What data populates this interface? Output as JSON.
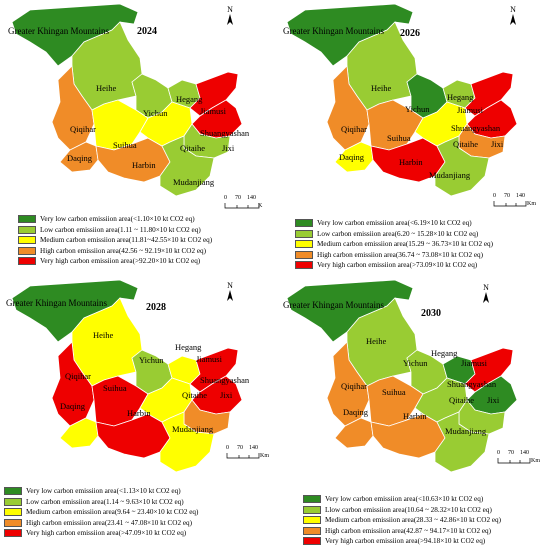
{
  "colors": {
    "very_low": "#2e8b22",
    "low": "#99cc33",
    "medium": "#ffff00",
    "high": "#f08c28",
    "very_high": "#ee0000"
  },
  "region_title": "Greater Khingan Mountains",
  "place_names": {
    "heihe": "Heihe",
    "yichun": "Yichun",
    "hegang": "Hegang",
    "jiamusi": "Jiamusi",
    "qiqihar": "Qiqihar",
    "suihua": "Suihua",
    "shuangyashan": "Shuangyashan",
    "qitaihe": "Qitaihe",
    "jixi": "Jixi",
    "daqing": "Daqing",
    "harbin": "Harbin",
    "mudanjiang": "Mudanjiang"
  },
  "north_label": "N",
  "scale": {
    "ticks": [
      "0",
      "70",
      "140"
    ],
    "unit_km": "Km",
    "unit_k": "K"
  },
  "panels": [
    {
      "year": "2024",
      "classes": {
        "greater_khingan": "very_low",
        "heihe": "low",
        "yichun": "low",
        "hegang": "low",
        "jiamusi": "very_high",
        "shuangyashan": "very_high",
        "qiqihar": "high",
        "suihua": "medium",
        "daqing": "high",
        "harbin": "high",
        "qitaihe": "medium",
        "jixi": "low",
        "mudanjiang": "low"
      },
      "legend": [
        "Very low carbon emissiion area(<1.10×10 kt CO2 eq)",
        "Low carbon emissiion area(1.11 ~ 11.80×10 kt CO2 eq)",
        "Medium carbon emissiion area(11.81~42.55×10 kt CO2 eq)",
        "High  carbon emissiion area(42.56 ~ 92.19×10 kt CO2 eq)",
        "Very high carbon emissiion area(>92.20×10 kt CO2 eq)"
      ]
    },
    {
      "year": "2026",
      "classes": {
        "greater_khingan": "very_low",
        "heihe": "low",
        "yichun": "very_low",
        "hegang": "low",
        "jiamusi": "very_high",
        "shuangyashan": "very_high",
        "qiqihar": "high",
        "suihua": "high",
        "daqing": "medium",
        "harbin": "very_high",
        "qitaihe": "medium",
        "jixi": "high",
        "mudanjiang": "low"
      },
      "legend": [
        "Very low carbon emissiion area(<6.19×10 kt CO2 eq)",
        "Low carbon emissiion area(6.20 ~ 15.28×10 kt CO2 eq)",
        "Medium carbon emissiion area(15.29 ~ 36.73×10 kt CO2 eq)",
        "High carbon emissiion area(36.74 ~ 73.08×10 kt CO2 eq)",
        "Very high carbon emissiion area(>73.09×10 kt CO2 eq)"
      ]
    },
    {
      "year": "2028",
      "classes": {
        "greater_khingan": "very_low",
        "heihe": "medium",
        "yichun": "low",
        "hegang": "medium",
        "jiamusi": "very_high",
        "shuangyashan": "very_high",
        "qiqihar": "very_high",
        "suihua": "very_high",
        "daqing": "medium",
        "harbin": "very_high",
        "qitaihe": "medium",
        "jixi": "high",
        "mudanjiang": "medium"
      },
      "legend": [
        "Very low carbon emissiion area(<1.13×10 kt CO2 eq)",
        "Low carbon emissiion area(1.14 ~ 9.63×10 kt CO2 eq)",
        "Medium carbon emissiion area(9.64 ~ 23.40×10 kt CO2 eq)",
        "High carbon emissiion area(23.41 ~ 47.08×10 kt CO2 eq)",
        "Very high carbon emissiion area(>47.09×10 kt CO2 eq)"
      ]
    },
    {
      "year": "2030",
      "classes": {
        "greater_khingan": "very_low",
        "heihe": "low",
        "yichun": "low",
        "hegang": "very_low",
        "jiamusi": "very_high",
        "shuangyashan": "very_low",
        "qiqihar": "high",
        "suihua": "high",
        "daqing": "high",
        "harbin": "high",
        "qitaihe": "low",
        "jixi": "low",
        "mudanjiang": "low"
      },
      "legend": [
        "Very low carbon emissiion area(<10.63×10 kt CO2 eq)",
        "Llow carbon emissiion area(10.64 ~ 28.32×10 kt CO2 eq)",
        "Medium carbon emissiion area(28.33 ~ 42.86×10 kt CO2 eq)",
        "High carbon emissiion area(42.87 ~ 94.17×10 kt CO2 eq)",
        "Very high carbon emissiion area(>94.18×10 kt CO2 eq)"
      ]
    }
  ]
}
